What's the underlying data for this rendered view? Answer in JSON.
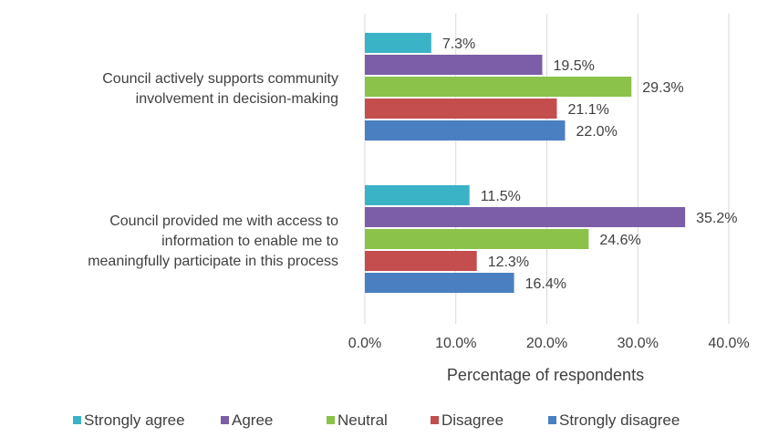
{
  "chart_data": {
    "type": "bar",
    "orientation": "horizontal",
    "categories": [
      [
        "Council actively supports community",
        "involvement in decision-making"
      ],
      [
        "Council provided me with access to",
        "information to enable me to",
        "meaningfully participate in this process"
      ]
    ],
    "series": [
      {
        "name": "Strongly agree",
        "color": "#3bb3c6",
        "values": [
          7.3,
          11.5
        ],
        "labels": [
          "7.3%",
          "11.5%"
        ]
      },
      {
        "name": "Agree",
        "color": "#7b5ea7",
        "values": [
          19.5,
          35.2
        ],
        "labels": [
          "19.5%",
          "35.2%"
        ]
      },
      {
        "name": "Neutral",
        "color": "#8bc34a",
        "values": [
          29.3,
          24.6
        ],
        "labels": [
          "29.3%",
          "24.6%"
        ]
      },
      {
        "name": "Disagree",
        "color": "#c44d4d",
        "values": [
          21.1,
          12.3
        ],
        "labels": [
          "21.1%",
          "12.3%"
        ]
      },
      {
        "name": "Strongly disagree",
        "color": "#4a7fc1",
        "values": [
          22.0,
          16.4
        ],
        "labels": [
          "22.0%",
          "16.4%"
        ]
      }
    ],
    "xlabel": "Percentage of respondents",
    "xlim": [
      0,
      40
    ],
    "xticks": [
      0,
      10,
      20,
      30,
      40
    ],
    "xtick_labels": [
      "0.0%",
      "10.0%",
      "20.0%",
      "30.0%",
      "40.0%"
    ],
    "grid": "vertical",
    "legend": "bottom"
  }
}
